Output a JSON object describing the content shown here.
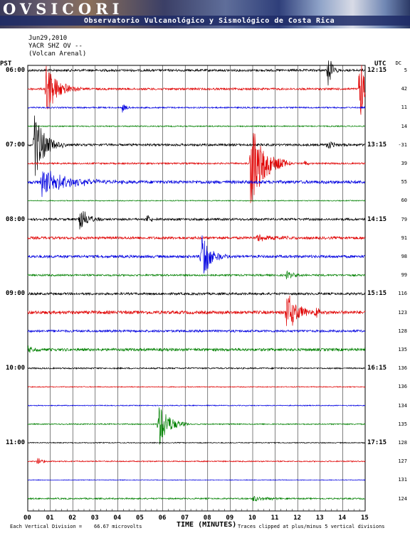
{
  "banner": {
    "logo": "OVSICORI",
    "subtitle": "Observatorio Vulcanológico y Sismológico de Costa Rica"
  },
  "header": {
    "date": "Jun29,2010",
    "station": "YACR SHZ OV --",
    "volcano": "(Volcan Arenal)"
  },
  "left_zone": "PST",
  "right_zone": "UTC",
  "dc_header": "DC",
  "chart_data": {
    "type": "line",
    "xlabel": "TIME (MINUTES)",
    "xlim": [
      0,
      15
    ],
    "x_ticks": [
      "00",
      "01",
      "02",
      "03",
      "04",
      "05",
      "06",
      "07",
      "08",
      "09",
      "10",
      "11",
      "12",
      "13",
      "14",
      "15"
    ],
    "left_time_labels": [
      "06:00",
      "07:00",
      "08:00",
      "09:00",
      "10:00",
      "11:00"
    ],
    "right_time_labels": [
      "12:15",
      "13:15",
      "14:15",
      "15:15",
      "16:15",
      "17:15"
    ],
    "trace_colors": [
      "#000000",
      "#e00000",
      "#0000e0",
      "#008000"
    ],
    "dc_offsets": [
      "5",
      "42",
      "11",
      "14",
      "-31",
      "39",
      "55",
      "60",
      "79",
      "91",
      "98",
      "99",
      "116",
      "123",
      "128",
      "135",
      "136",
      "136",
      "134",
      "135",
      "128",
      "127",
      "131",
      "124"
    ],
    "trace_levels": [
      1,
      0.9,
      0.6,
      0.5,
      1,
      0.7,
      1.4,
      0.4,
      1,
      1.1,
      1.2,
      0.8,
      1,
      1.4,
      1,
      1.2,
      0.6,
      0.4,
      0.4,
      0.5,
      0.4,
      0.5,
      0.3,
      0.6
    ],
    "events": [
      {
        "trace": 0,
        "minute": 13.35,
        "amplitude": 30,
        "duration": 0.5
      },
      {
        "trace": 1,
        "minute": 0.8,
        "amplitude": 40,
        "duration": 1.6
      },
      {
        "trace": 1,
        "minute": 14.75,
        "amplitude": 80,
        "duration": 0.45
      },
      {
        "trace": 2,
        "minute": 4.2,
        "amplitude": 7,
        "duration": 0.6
      },
      {
        "trace": 4,
        "minute": 0.3,
        "amplitude": 50,
        "duration": 1.4
      },
      {
        "trace": 4,
        "minute": 13.3,
        "amplitude": 10,
        "duration": 1.0
      },
      {
        "trace": 5,
        "minute": 9.9,
        "amplitude": 70,
        "duration": 1.8
      },
      {
        "trace": 5,
        "minute": 12.3,
        "amplitude": 5,
        "duration": 0.5
      },
      {
        "trace": 6,
        "minute": 0.6,
        "amplitude": 20,
        "duration": 3.6
      },
      {
        "trace": 8,
        "minute": 2.3,
        "amplitude": 22,
        "duration": 1.0
      },
      {
        "trace": 8,
        "minute": 5.3,
        "amplitude": 9,
        "duration": 0.5
      },
      {
        "trace": 9,
        "minute": 10.2,
        "amplitude": 6,
        "duration": 2.5
      },
      {
        "trace": 10,
        "minute": 7.7,
        "amplitude": 42,
        "duration": 1.2
      },
      {
        "trace": 11,
        "minute": 11.5,
        "amplitude": 6,
        "duration": 1.0
      },
      {
        "trace": 13,
        "minute": 11.5,
        "amplitude": 30,
        "duration": 1.6
      },
      {
        "trace": 13,
        "minute": 12.8,
        "amplitude": 8,
        "duration": 0.9
      },
      {
        "trace": 15,
        "minute": 0,
        "amplitude": 5,
        "duration": 1.0
      },
      {
        "trace": 19,
        "minute": 5.8,
        "amplitude": 35,
        "duration": 1.4
      },
      {
        "trace": 21,
        "minute": 0.4,
        "amplitude": 6,
        "duration": 0.8
      },
      {
        "trace": 23,
        "minute": 10.0,
        "amplitude": 5,
        "duration": 1.8
      }
    ]
  },
  "footer": {
    "scale": "Each Vertical Division =    66.67 microvolts",
    "clip": "Traces clipped at plus/minus 5 vertical divisions"
  }
}
